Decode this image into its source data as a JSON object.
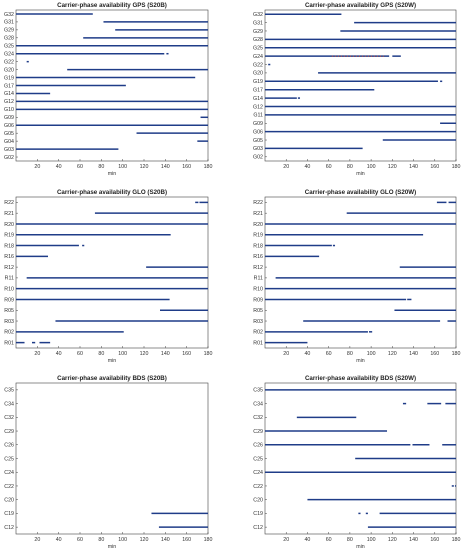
{
  "chart_data": [
    {
      "type": "timeline",
      "title": "Carrier-phase availability GPS (S20B)",
      "xlabel": "min",
      "xlim": [
        0,
        180
      ],
      "xticks": [
        20,
        40,
        60,
        80,
        100,
        120,
        140,
        160,
        180
      ],
      "colors": {
        "track": "#1f3c88",
        "outlier": "#c0392b"
      },
      "satellites": [
        "G32",
        "G31",
        "G29",
        "G28",
        "G25",
        "G24",
        "G22",
        "G20",
        "G19",
        "G17",
        "G14",
        "G12",
        "G10",
        "G09",
        "G06",
        "G05",
        "G04",
        "G03",
        "G02"
      ],
      "rows": [
        {
          "sat": "G32",
          "segments": [
            [
              0,
              72
            ]
          ]
        },
        {
          "sat": "G31",
          "segments": [
            [
              82,
              180
            ]
          ]
        },
        {
          "sat": "G29",
          "segments": [
            [
              93,
              180
            ]
          ]
        },
        {
          "sat": "G28",
          "segments": [
            [
              63,
              180
            ]
          ]
        },
        {
          "sat": "G25",
          "segments": [
            [
              0,
              180
            ]
          ]
        },
        {
          "sat": "G24",
          "segments": [
            [
              0,
              139
            ],
            [
              141,
              143
            ]
          ]
        },
        {
          "sat": "G22",
          "segments": [
            [
              10,
              12
            ]
          ]
        },
        {
          "sat": "G20",
          "segments": [
            [
              48,
              180
            ]
          ]
        },
        {
          "sat": "G19",
          "segments": [
            [
              0,
              168
            ]
          ]
        },
        {
          "sat": "G17",
          "segments": [
            [
              0,
              103
            ]
          ]
        },
        {
          "sat": "G14",
          "segments": [
            [
              0,
              32
            ]
          ]
        },
        {
          "sat": "G12",
          "segments": [
            [
              0,
              180
            ]
          ]
        },
        {
          "sat": "G10",
          "segments": [
            [
              0,
              180
            ]
          ]
        },
        {
          "sat": "G09",
          "segments": [
            [
              173,
              180
            ]
          ]
        },
        {
          "sat": "G06",
          "segments": [
            [
              0,
              180
            ]
          ]
        },
        {
          "sat": "G05",
          "segments": [
            [
              113,
              180
            ]
          ]
        },
        {
          "sat": "G04",
          "segments": [
            [
              170,
              180
            ]
          ]
        },
        {
          "sat": "G03",
          "segments": [
            [
              0,
              96
            ]
          ]
        },
        {
          "sat": "G02",
          "segments": []
        }
      ]
    },
    {
      "type": "timeline",
      "title": "Carrier-phase availability GPS (S20W)",
      "xlabel": "min",
      "xlim": [
        0,
        180
      ],
      "xticks": [
        20,
        40,
        60,
        80,
        100,
        120,
        140,
        160,
        180
      ],
      "colors": {
        "track": "#1f3c88",
        "outlier": "#c0392b"
      },
      "satellites": [
        "G32",
        "G31",
        "G29",
        "G28",
        "G25",
        "G24",
        "G22",
        "G20",
        "G19",
        "G17",
        "G14",
        "G12",
        "G11",
        "G09",
        "G06",
        "G05",
        "G03",
        "G02"
      ],
      "rows": [
        {
          "sat": "G32",
          "segments": [
            [
              0,
              72
            ]
          ]
        },
        {
          "sat": "G31",
          "segments": [
            [
              84,
              180
            ]
          ]
        },
        {
          "sat": "G29",
          "segments": [
            [
              71,
              180
            ]
          ]
        },
        {
          "sat": "G28",
          "segments": [
            [
              0,
              180
            ]
          ]
        },
        {
          "sat": "G25",
          "segments": [
            [
              0,
              180
            ]
          ]
        },
        {
          "sat": "G24",
          "segments": [
            [
              0,
              117
            ],
            [
              120,
              128
            ]
          ],
          "outliers": [
            [
              63,
              112
            ]
          ]
        },
        {
          "sat": "G22",
          "segments": [
            [
              3,
              5
            ]
          ]
        },
        {
          "sat": "G20",
          "segments": [
            [
              50,
              180
            ]
          ]
        },
        {
          "sat": "G19",
          "segments": [
            [
              0,
              163
            ],
            [
              165,
              167
            ]
          ]
        },
        {
          "sat": "G17",
          "segments": [
            [
              0,
              103
            ]
          ]
        },
        {
          "sat": "G14",
          "segments": [
            [
              0,
              30
            ],
            [
              31,
              33
            ]
          ]
        },
        {
          "sat": "G12",
          "segments": [
            [
              0,
              180
            ]
          ]
        },
        {
          "sat": "G11",
          "segments": [
            [
              0,
              180
            ]
          ]
        },
        {
          "sat": "G09",
          "segments": [
            [
              165,
              180
            ]
          ]
        },
        {
          "sat": "G06",
          "segments": [
            [
              0,
              180
            ]
          ]
        },
        {
          "sat": "G05",
          "segments": [
            [
              111,
              180
            ]
          ]
        },
        {
          "sat": "G03",
          "segments": [
            [
              0,
              92
            ]
          ]
        },
        {
          "sat": "G02",
          "segments": []
        }
      ]
    },
    {
      "type": "timeline",
      "title": "Carrier-phase availability GLO (S20B)",
      "xlabel": "min",
      "xlim": [
        0,
        180
      ],
      "xticks": [
        20,
        40,
        60,
        80,
        100,
        120,
        140,
        160,
        180
      ],
      "colors": {
        "track": "#1f3c88",
        "outlier": "#c0392b"
      },
      "satellites": [
        "R22",
        "R21",
        "R20",
        "R19",
        "R18",
        "R16",
        "R12",
        "R11",
        "R10",
        "R09",
        "R05",
        "R03",
        "R02",
        "R01"
      ],
      "rows": [
        {
          "sat": "R22",
          "segments": [
            [
              168,
              171
            ],
            [
              172,
              180
            ]
          ]
        },
        {
          "sat": "R21",
          "segments": [
            [
              74,
              180
            ]
          ]
        },
        {
          "sat": "R20",
          "segments": [
            [
              0,
              180
            ]
          ]
        },
        {
          "sat": "R19",
          "segments": [
            [
              0,
              145
            ]
          ]
        },
        {
          "sat": "R18",
          "segments": [
            [
              0,
              59
            ],
            [
              62,
              64
            ]
          ]
        },
        {
          "sat": "R16",
          "segments": [
            [
              0,
              30
            ]
          ]
        },
        {
          "sat": "R12",
          "segments": [
            [
              122,
              180
            ]
          ]
        },
        {
          "sat": "R11",
          "segments": [
            [
              10,
              180
            ]
          ]
        },
        {
          "sat": "R10",
          "segments": [
            [
              0,
              180
            ]
          ]
        },
        {
          "sat": "R09",
          "segments": [
            [
              0,
              144
            ]
          ]
        },
        {
          "sat": "R05",
          "segments": [
            [
              135,
              180
            ]
          ]
        },
        {
          "sat": "R03",
          "segments": [
            [
              37,
              180
            ]
          ]
        },
        {
          "sat": "R02",
          "segments": [
            [
              0,
              101
            ]
          ]
        },
        {
          "sat": "R01",
          "segments": [
            [
              0,
              8
            ],
            [
              15,
              18
            ],
            [
              22,
              32
            ]
          ]
        }
      ]
    },
    {
      "type": "timeline",
      "title": "Carrier-phase availability GLO (S20W)",
      "xlabel": "min",
      "xlim": [
        0,
        180
      ],
      "xticks": [
        20,
        40,
        60,
        80,
        100,
        120,
        140,
        160,
        180
      ],
      "colors": {
        "track": "#1f3c88",
        "outlier": "#c0392b"
      },
      "satellites": [
        "R22",
        "R21",
        "R20",
        "R19",
        "R18",
        "R16",
        "R12",
        "R11",
        "R10",
        "R09",
        "R05",
        "R03",
        "R02",
        "R01"
      ],
      "rows": [
        {
          "sat": "R22",
          "segments": [
            [
              162,
              171
            ],
            [
              173,
              180
            ]
          ]
        },
        {
          "sat": "R21",
          "segments": [
            [
              77,
              180
            ]
          ]
        },
        {
          "sat": "R20",
          "segments": [
            [
              0,
              180
            ]
          ]
        },
        {
          "sat": "R19",
          "segments": [
            [
              0,
              149
            ]
          ]
        },
        {
          "sat": "R18",
          "segments": [
            [
              0,
              63
            ],
            [
              64,
              66
            ]
          ]
        },
        {
          "sat": "R16",
          "segments": [
            [
              0,
              51
            ]
          ]
        },
        {
          "sat": "R12",
          "segments": [
            [
              127,
              180
            ]
          ]
        },
        {
          "sat": "R11",
          "segments": [
            [
              10,
              180
            ]
          ]
        },
        {
          "sat": "R10",
          "segments": [
            [
              0,
              180
            ]
          ]
        },
        {
          "sat": "R09",
          "segments": [
            [
              0,
              133
            ],
            [
              134,
              138
            ]
          ]
        },
        {
          "sat": "R05",
          "segments": [
            [
              122,
              180
            ]
          ]
        },
        {
          "sat": "R03",
          "segments": [
            [
              36,
              165
            ],
            [
              172,
              180
            ]
          ]
        },
        {
          "sat": "R02",
          "segments": [
            [
              0,
              97
            ],
            [
              98,
              101
            ]
          ]
        },
        {
          "sat": "R01",
          "segments": [
            [
              0,
              40
            ]
          ]
        }
      ]
    },
    {
      "type": "timeline",
      "title": "Carrier-phase availability BDS (S20B)",
      "xlabel": "min",
      "xlim": [
        0,
        180
      ],
      "xticks": [
        20,
        40,
        60,
        80,
        100,
        120,
        140,
        160,
        180
      ],
      "colors": {
        "track": "#1f3c88",
        "outlier": "#c0392b"
      },
      "satellites": [
        "C35",
        "C34",
        "C32",
        "C29",
        "C26",
        "C25",
        "C24",
        "C22",
        "C20",
        "C19",
        "C12"
      ],
      "rows": [
        {
          "sat": "C35",
          "segments": []
        },
        {
          "sat": "C34",
          "segments": []
        },
        {
          "sat": "C32",
          "segments": []
        },
        {
          "sat": "C29",
          "segments": []
        },
        {
          "sat": "C26",
          "segments": []
        },
        {
          "sat": "C25",
          "segments": []
        },
        {
          "sat": "C24",
          "segments": []
        },
        {
          "sat": "C22",
          "segments": []
        },
        {
          "sat": "C20",
          "segments": []
        },
        {
          "sat": "C19",
          "segments": [
            [
              127,
              180
            ]
          ]
        },
        {
          "sat": "C12",
          "segments": [
            [
              134,
              180
            ]
          ]
        }
      ]
    },
    {
      "type": "timeline",
      "title": "Carrier-phase availability BDS (S20W)",
      "xlabel": "min",
      "xlim": [
        0,
        180
      ],
      "xticks": [
        20,
        40,
        60,
        80,
        100,
        120,
        140,
        160,
        180
      ],
      "colors": {
        "track": "#1f3c88",
        "outlier": "#c0392b"
      },
      "satellites": [
        "C35",
        "C34",
        "C32",
        "C29",
        "C26",
        "C25",
        "C24",
        "C22",
        "C20",
        "C19",
        "C12"
      ],
      "rows": [
        {
          "sat": "C35",
          "segments": [
            [
              0,
              180
            ]
          ]
        },
        {
          "sat": "C34",
          "segments": [
            [
              130,
              133
            ],
            [
              153,
              166
            ],
            [
              170,
              180
            ]
          ]
        },
        {
          "sat": "C32",
          "segments": [
            [
              30,
              86
            ]
          ]
        },
        {
          "sat": "C29",
          "segments": [
            [
              0,
              115
            ]
          ]
        },
        {
          "sat": "C26",
          "segments": [
            [
              0,
              137
            ],
            [
              139,
              155
            ],
            [
              167,
              180
            ]
          ]
        },
        {
          "sat": "C25",
          "segments": [
            [
              85,
              180
            ]
          ]
        },
        {
          "sat": "C24",
          "segments": [
            [
              0,
              180
            ]
          ]
        },
        {
          "sat": "C22",
          "segments": [
            [
              176,
              178
            ],
            [
              179,
              180
            ]
          ]
        },
        {
          "sat": "C20",
          "segments": [
            [
              40,
              180
            ]
          ]
        },
        {
          "sat": "C19",
          "segments": [
            [
              88,
              90
            ],
            [
              95,
              97
            ],
            [
              108,
              180
            ]
          ]
        },
        {
          "sat": "C12",
          "segments": [
            [
              97,
              180
            ]
          ]
        }
      ]
    }
  ]
}
